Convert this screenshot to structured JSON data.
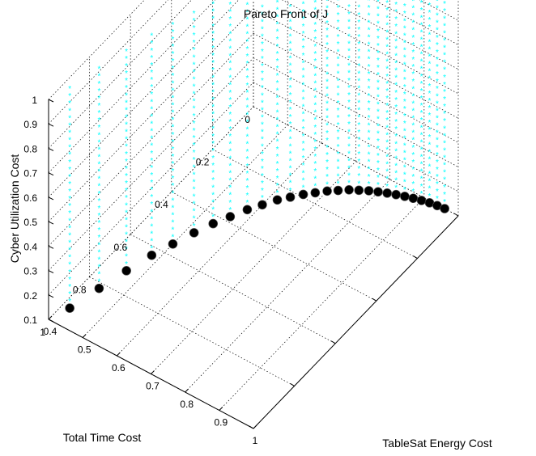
{
  "chart_data": {
    "type": "scatter",
    "title": "Pareto Front of J",
    "xlabel": "TableSat Energy Cost",
    "ylabel": "Total Time Cost",
    "zlabel": "Cyber Utilization Cost",
    "xlim": [
      0.4,
      1.0
    ],
    "ylim": [
      0,
      1
    ],
    "zlim": [
      0.1,
      1.0
    ],
    "x_ticks": [
      "0.4",
      "0.5",
      "0.6",
      "0.7",
      "0.8",
      "0.9",
      "1"
    ],
    "y_ticks": [
      "0",
      "0.2",
      "0.4",
      "0.6",
      "0.8",
      "1"
    ],
    "z_ticks": [
      "0.1",
      "0.2",
      "0.3",
      "0.4",
      "0.5",
      "0.6",
      "0.7",
      "0.8",
      "0.9",
      "1"
    ],
    "grid": true,
    "colors": {
      "front_markers": "#000000",
      "vertical_series": "#00ffff"
    },
    "series": [
      {
        "marker": "black filled circles at z = 0.1",
        "points": [
          {
            "x": 0.42,
            "y": 0.93,
            "z": 0.1
          },
          {
            "x": 0.44,
            "y": 0.82,
            "z": 0.1
          },
          {
            "x": 0.46,
            "y": 0.72,
            "z": 0.1
          },
          {
            "x": 0.48,
            "y": 0.63,
            "z": 0.1
          },
          {
            "x": 0.5,
            "y": 0.56,
            "z": 0.1
          },
          {
            "x": 0.52,
            "y": 0.49,
            "z": 0.1
          },
          {
            "x": 0.54,
            "y": 0.43,
            "z": 0.1
          },
          {
            "x": 0.56,
            "y": 0.38,
            "z": 0.1
          },
          {
            "x": 0.58,
            "y": 0.33,
            "z": 0.1
          },
          {
            "x": 0.6,
            "y": 0.29,
            "z": 0.1
          },
          {
            "x": 0.62,
            "y": 0.25,
            "z": 0.1
          },
          {
            "x": 0.64,
            "y": 0.22,
            "z": 0.1
          },
          {
            "x": 0.66,
            "y": 0.19,
            "z": 0.1
          },
          {
            "x": 0.68,
            "y": 0.165,
            "z": 0.1
          },
          {
            "x": 0.7,
            "y": 0.14,
            "z": 0.1
          },
          {
            "x": 0.72,
            "y": 0.12,
            "z": 0.1
          },
          {
            "x": 0.74,
            "y": 0.1,
            "z": 0.1
          },
          {
            "x": 0.76,
            "y": 0.085,
            "z": 0.1
          },
          {
            "x": 0.78,
            "y": 0.07,
            "z": 0.1
          },
          {
            "x": 0.8,
            "y": 0.058,
            "z": 0.1
          },
          {
            "x": 0.82,
            "y": 0.047,
            "z": 0.1
          },
          {
            "x": 0.84,
            "y": 0.037,
            "z": 0.1
          },
          {
            "x": 0.86,
            "y": 0.028,
            "z": 0.1
          },
          {
            "x": 0.88,
            "y": 0.02,
            "z": 0.1
          },
          {
            "x": 0.9,
            "y": 0.013,
            "z": 0.1
          },
          {
            "x": 0.92,
            "y": 0.007,
            "z": 0.1
          },
          {
            "x": 0.94,
            "y": 0.003,
            "z": 0.1
          },
          {
            "x": 0.96,
            "y": 0.0,
            "z": 0.1
          }
        ]
      },
      {
        "marker": "cyan star columns from z = 0.1 to z = 1.0 above each front point",
        "z_range": [
          0.1,
          1.0
        ],
        "z_step": 0.03
      }
    ]
  }
}
